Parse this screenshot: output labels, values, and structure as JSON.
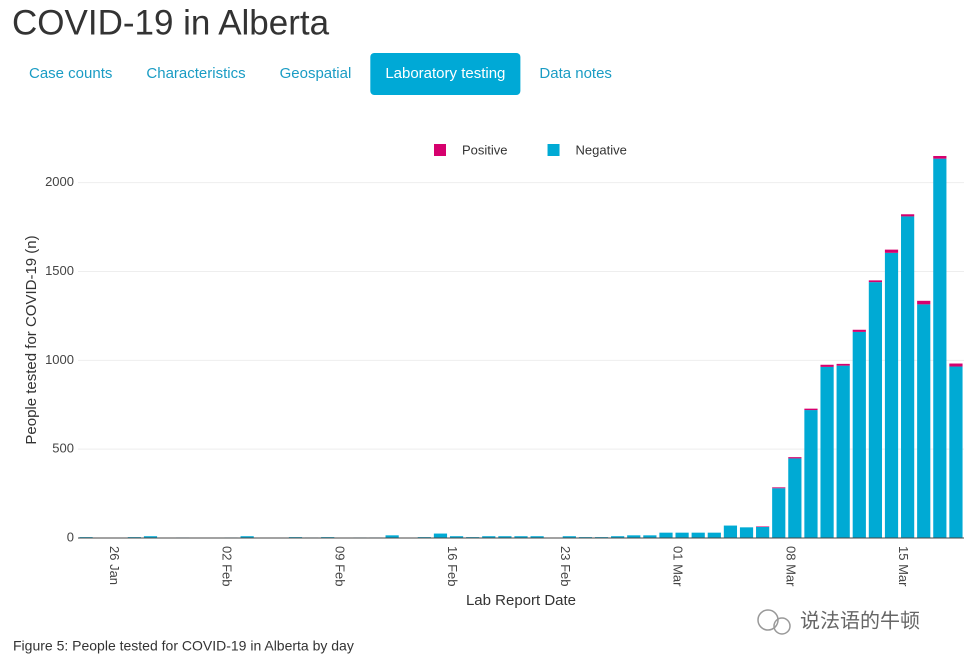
{
  "header": {
    "title": "COVID-19 in Alberta"
  },
  "tabs": [
    "Case counts",
    "Characteristics",
    "Geospatial",
    "Laboratory testing",
    "Data notes"
  ],
  "active_tab": 3,
  "chart_data": {
    "type": "bar",
    "stacked": true,
    "y_label": "People tested for COVID-19 (n)",
    "x_label": "Lab Report Date",
    "categories": [
      "24 Jan",
      "25 Jan",
      "26 Jan",
      "27 Jan",
      "28 Jan",
      "29 Jan",
      "30 Jan",
      "31 Jan",
      "01 Feb",
      "02 Feb",
      "03 Feb",
      "04 Feb",
      "05 Feb",
      "06 Feb",
      "07 Feb",
      "08 Feb",
      "09 Feb",
      "10 Feb",
      "11 Feb",
      "12 Feb",
      "13 Feb",
      "14 Feb",
      "15 Feb",
      "16 Feb",
      "17 Feb",
      "18 Feb",
      "19 Feb",
      "20 Feb",
      "21 Feb",
      "22 Feb",
      "23 Feb",
      "24 Feb",
      "25 Feb",
      "26 Feb",
      "27 Feb",
      "28 Feb",
      "29 Feb",
      "01 Mar",
      "02 Mar",
      "03 Mar",
      "04 Mar",
      "05 Mar",
      "06 Mar",
      "07 Mar",
      "08 Mar",
      "09 Mar",
      "10 Mar",
      "11 Mar",
      "12 Mar",
      "13 Mar",
      "14 Mar",
      "15 Mar",
      "16 Mar",
      "17 Mar",
      "18 Mar"
    ],
    "series": [
      {
        "name": "Positive",
        "color": "#d6006e",
        "values": [
          0,
          0,
          0,
          0,
          0,
          0,
          0,
          0,
          0,
          0,
          0,
          0,
          0,
          0,
          0,
          0,
          0,
          0,
          0,
          0,
          0,
          0,
          0,
          0,
          0,
          0,
          0,
          0,
          0,
          0,
          0,
          0,
          0,
          0,
          0,
          0,
          0,
          0,
          0,
          0,
          0,
          0,
          3,
          5,
          7,
          8,
          12,
          10,
          12,
          10,
          18,
          12,
          20,
          15,
          17
        ]
      },
      {
        "name": "Negative",
        "color": "#00aad4",
        "values": [
          5,
          0,
          2,
          5,
          10,
          0,
          3,
          2,
          0,
          3,
          10,
          0,
          0,
          5,
          3,
          5,
          0,
          3,
          3,
          15,
          0,
          5,
          25,
          10,
          5,
          10,
          10,
          10,
          10,
          0,
          10,
          5,
          5,
          10,
          15,
          15,
          30,
          30,
          30,
          30,
          70,
          60,
          62,
          280,
          448,
          720,
          963,
          970,
          1160,
          1440,
          1605,
          1810,
          1315,
          2135,
          965
        ]
      }
    ],
    "ylim": [
      0,
      2240
    ],
    "yticks": [
      0,
      500,
      1000,
      1500,
      2000
    ],
    "grid": true,
    "xticks": [
      "26 Jan",
      "02 Feb",
      "09 Feb",
      "16 Feb",
      "23 Feb",
      "01 Mar",
      "08 Mar",
      "15 Mar"
    ],
    "legend": "top"
  },
  "caption": "Figure 5: People tested for COVID-19 in Alberta by day",
  "watermark": "说法语的牛顿"
}
